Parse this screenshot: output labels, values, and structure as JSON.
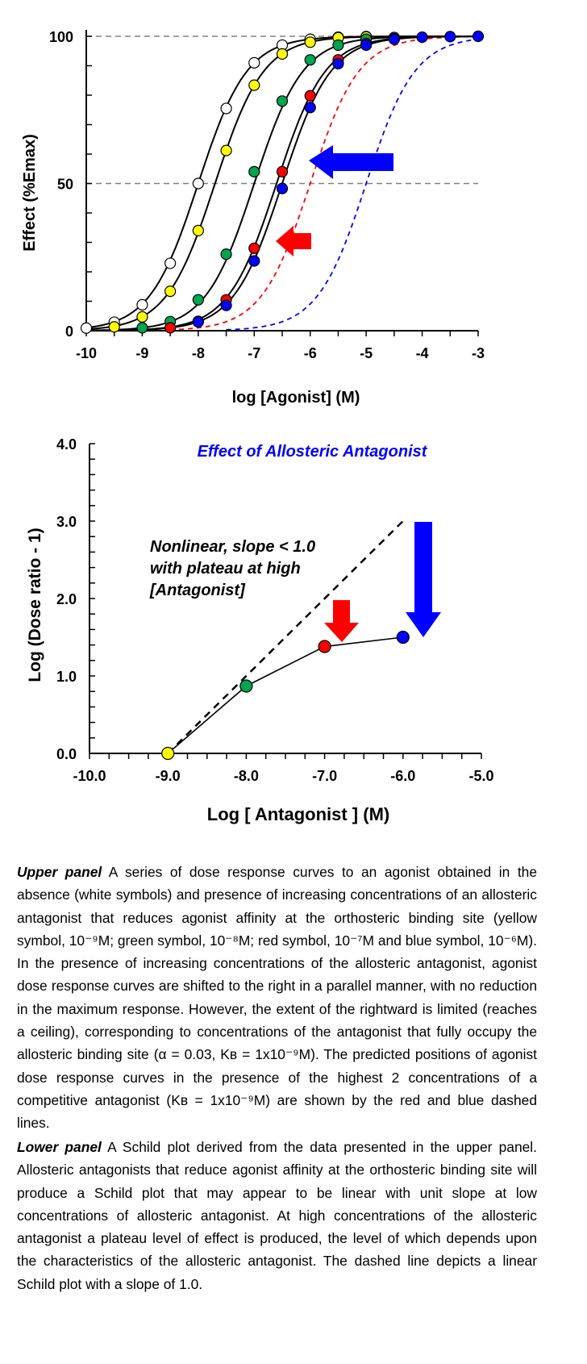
{
  "chart_data": [
    {
      "type": "scatter",
      "panel": "upper",
      "xlabel": "log [Agonist] (M)",
      "ylabel": "Effect (%Emax)",
      "xlim": [
        -10,
        -3
      ],
      "ylim": [
        0,
        100
      ],
      "xticks": [
        "-10",
        "-9",
        "-8",
        "-7",
        "-6",
        "-5",
        "-4",
        "-3"
      ],
      "yticks": [
        "0",
        "50",
        "100"
      ],
      "reference_lines": [
        50,
        100
      ],
      "series": [
        {
          "color": "#ffffff",
          "ec50_log": -8.0,
          "points": [
            [
              -10,
              0.9
            ],
            [
              -9.5,
              2.9
            ],
            [
              -9,
              8.8
            ],
            [
              -8.5,
              22.9
            ],
            [
              -8,
              50
            ],
            [
              -7.5,
              75.5
            ],
            [
              -7,
              91
            ],
            [
              -6.5,
              97
            ],
            [
              -6,
              99
            ],
            [
              -5.5,
              99.7
            ],
            [
              -5,
              99.9
            ]
          ]
        },
        {
          "color": "#ffff00",
          "ec50_log": -7.7,
          "points": [
            [
              -9.5,
              1.3
            ],
            [
              -9,
              4.7
            ],
            [
              -8.5,
              13.4
            ],
            [
              -8,
              34
            ],
            [
              -7.5,
              61.2
            ],
            [
              -7,
              83.4
            ],
            [
              -6.5,
              94
            ],
            [
              -6,
              98
            ],
            [
              -5.5,
              99.5
            ],
            [
              -5,
              99.8
            ]
          ]
        },
        {
          "color": "#00a550",
          "ec50_log": -7.0,
          "points": [
            [
              -9,
              1
            ],
            [
              -8.5,
              3.1
            ],
            [
              -8,
              10.5
            ],
            [
              -7.5,
              26
            ],
            [
              -7,
              54
            ],
            [
              -6.5,
              78
            ],
            [
              -6,
              92
            ],
            [
              -5.5,
              97
            ],
            [
              -5,
              99
            ],
            [
              -4.5,
              99.6
            ]
          ]
        },
        {
          "color": "#ff0000",
          "ec50_log": -6.6,
          "points": [
            [
              -8.5,
              1
            ],
            [
              -8,
              3.2
            ],
            [
              -7.5,
              10.5
            ],
            [
              -7,
              28
            ],
            [
              -6.5,
              54
            ],
            [
              -6,
              79.8
            ],
            [
              -5.5,
              92
            ],
            [
              -5,
              97.5
            ],
            [
              -4.5,
              99.2
            ]
          ]
        },
        {
          "color": "#0000ff",
          "ec50_log": -6.5,
          "points": [
            [
              -8,
              3
            ],
            [
              -7.5,
              8.6
            ],
            [
              -7,
              23.7
            ],
            [
              -6.5,
              48.3
            ],
            [
              -6,
              75.8
            ],
            [
              -5.5,
              90.7
            ],
            [
              -5,
              97
            ],
            [
              -4.5,
              99
            ],
            [
              -4,
              99.7
            ],
            [
              -3.5,
              99.9
            ],
            [
              -3,
              100
            ]
          ]
        }
      ],
      "predicted_competitive_curves": [
        {
          "color": "#ff0000",
          "style": "dashed",
          "ec50_log": -6.0
        },
        {
          "color": "#0000ff",
          "style": "dashed",
          "ec50_log": -5.0
        }
      ]
    },
    {
      "type": "line",
      "panel": "lower",
      "title": "Effect of Allosteric Antagonist",
      "annotation": [
        "Nonlinear, slope < 1.0",
        "with plateau at high",
        "[Antagonist]"
      ],
      "xlabel": "Log [ Antagonist ]  (M)",
      "ylabel": "Log (Dose ratio - 1)",
      "xlim": [
        -10,
        -5
      ],
      "ylim": [
        0,
        4
      ],
      "xticks": [
        "-10.0",
        "-9.0",
        "-8.0",
        "-7.0",
        "-6.0",
        "-5.0"
      ],
      "yticks": [
        "0.0",
        "1.0",
        "2.0",
        "3.0",
        "4.0"
      ],
      "points": [
        {
          "x": -9,
          "y": 0.0,
          "color": "#ffff00"
        },
        {
          "x": -8,
          "y": 0.87,
          "color": "#00a550"
        },
        {
          "x": -7,
          "y": 1.38,
          "color": "#ff0000"
        },
        {
          "x": -6,
          "y": 1.5,
          "color": "#0000ff"
        }
      ],
      "reference_line": {
        "style": "dashed",
        "slope": 1.0,
        "x": [
          -9,
          -6
        ],
        "y": [
          0,
          3
        ]
      }
    }
  ],
  "caption": {
    "upper_label": "Upper panel",
    "upper_text": "A series of dose response curves to an agonist obtained in the absence (white symbols) and presence of increasing concentrations of an allosteric antagonist that reduces agonist affinity at the orthosteric binding site (yellow symbol, 10⁻⁹M; green symbol, 10⁻⁸M; red symbol, 10⁻⁷M and blue symbol, 10⁻⁶M).  In the presence of increasing concentrations of the allosteric antagonist, agonist dose response curves are shifted to the right in a parallel manner, with no reduction in the maximum response. However, the extent of the rightward is limited (reaches a ceiling), corresponding to concentrations of the antagonist that fully occupy the allosteric binding site (α = 0.03, Kʙ = 1x10⁻⁹M).  The predicted positions of agonist dose response curves in the presence of the highest 2 concentrations of a competitive antagonist (Kʙ = 1x10⁻⁹M) are shown by the red and blue dashed lines.",
    "lower_label": "Lower panel",
    "lower_text": "A Schild plot derived from the data presented in the upper panel. Allosteric antagonists that reduce agonist affinity at the orthosteric binding site will produce a Schild plot that may appear to be linear with unit slope at low concentrations of allosteric antagonist. At high concentrations of the allosteric antagonist a plateau level of effect is produced, the level of which depends upon the characteristics of the allosteric antagonist.  The dashed line depicts a linear Schild plot with a slope of 1.0."
  }
}
